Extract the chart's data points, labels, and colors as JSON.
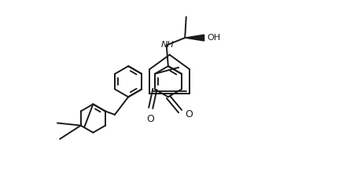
{
  "background_color": "#ffffff",
  "line_color": "#1a1a1a",
  "line_width": 1.4,
  "fig_width": 4.4,
  "fig_height": 2.48,
  "dpi": 100,
  "xlim": [
    0,
    10
  ],
  "ylim": [
    0,
    5.7
  ]
}
